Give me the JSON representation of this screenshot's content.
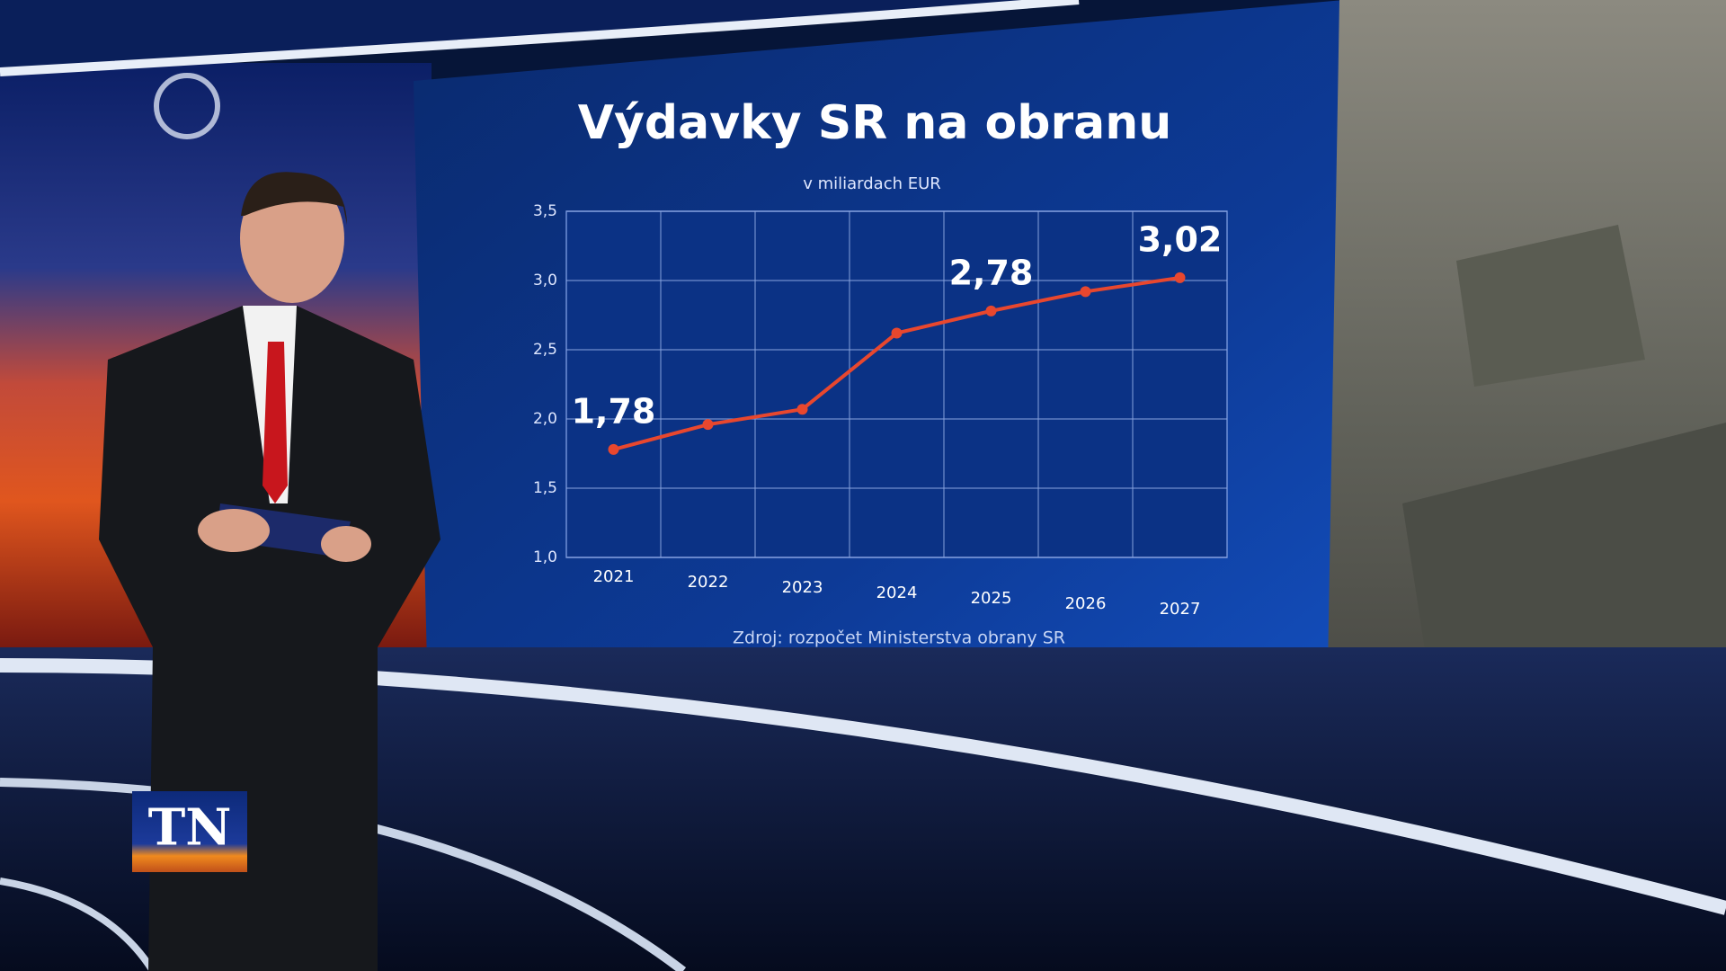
{
  "chart_data": {
    "type": "line",
    "title": "Výdavky SR na obranu",
    "subtitle": "v miliardach EUR",
    "source": "Zdroj: rozpočet Ministerstva obrany SR",
    "categories": [
      "2021",
      "2022",
      "2023",
      "2024",
      "2025",
      "2026",
      "2027"
    ],
    "series": [
      {
        "color": "#e8472e",
        "values": [
          1.78,
          1.96,
          2.07,
          2.62,
          2.78,
          2.92,
          3.02
        ],
        "value_labels": [
          "1,78",
          null,
          null,
          null,
          "2,78",
          null,
          "3,02"
        ]
      }
    ],
    "ylim": [
      1.0,
      3.5
    ],
    "yticks": [
      {
        "value": 1.0,
        "label": "1,0"
      },
      {
        "value": 1.5,
        "label": "1,5"
      },
      {
        "value": 2.0,
        "label": "2,0"
      },
      {
        "value": 2.5,
        "label": "2,5"
      },
      {
        "value": 3.0,
        "label": "3,0"
      },
      {
        "value": 3.5,
        "label": "3,5"
      }
    ],
    "grid": true
  },
  "logo": "TN"
}
